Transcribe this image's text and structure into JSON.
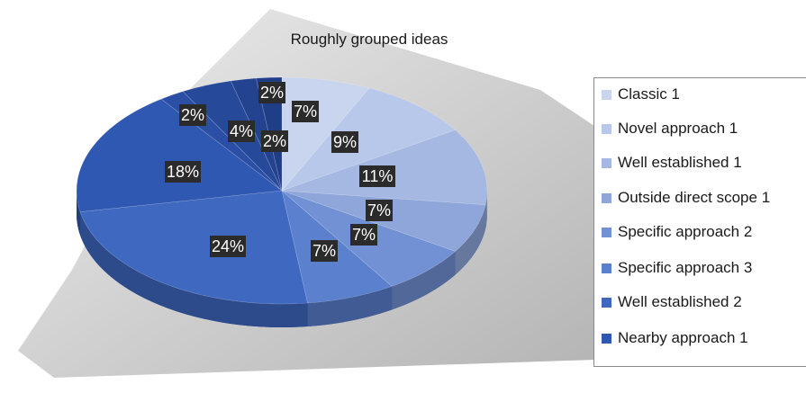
{
  "chart_data": {
    "type": "pie",
    "title": "Roughly grouped ideas",
    "legend_position": "right",
    "start": "12 o'clock, clockwise",
    "slices": [
      {
        "name": "Classic 1",
        "label": "7%",
        "color": "#c9d5ee"
      },
      {
        "name": "Novel approach 1",
        "label": "9%",
        "color": "#b8c8ea"
      },
      {
        "name": "Well established 1",
        "label": "11%",
        "color": "#a5b8e2"
      },
      {
        "name": "Outside direct scope 1",
        "label": "7%",
        "color": "#8ea6da"
      },
      {
        "name": "Specific approach 2",
        "label": "7%",
        "color": "#7191d4"
      },
      {
        "name": "Specific approach 3",
        "label": "7%",
        "color": "#5a80ce"
      },
      {
        "name": "Well established 2",
        "label": "24%",
        "color": "#3f68c0"
      },
      {
        "name": "Nearby approach 1",
        "label": "18%",
        "color": "#2f58b2"
      },
      {
        "name": "",
        "label": "2%",
        "color": "#2a4fa4"
      },
      {
        "name": "",
        "label": "4%",
        "color": "#27499a"
      },
      {
        "name": "",
        "label": "2%",
        "color": "#234391"
      },
      {
        "name": "",
        "label": "2%",
        "color": "#203d88"
      }
    ],
    "values": [
      7,
      9,
      11,
      7,
      7,
      7,
      24,
      18,
      2,
      4,
      2,
      2
    ],
    "legend": [
      "Classic 1",
      "Novel approach 1",
      "Well established 1",
      "Outside direct scope 1",
      "Specific approach 2",
      "Specific approach 3",
      "Well established 2",
      "Nearby approach 1"
    ]
  }
}
